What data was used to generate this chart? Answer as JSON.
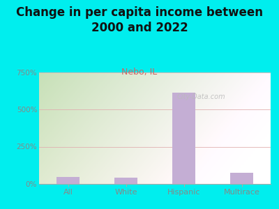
{
  "title": "Change in per capita income between\n2000 and 2022",
  "subtitle": "Nebo, IL",
  "categories": [
    "All",
    "White",
    "Hispanic",
    "Multirace"
  ],
  "values": [
    47,
    43,
    610,
    75
  ],
  "bar_color": "#c4aed4",
  "title_fontsize": 12,
  "subtitle_fontsize": 9,
  "subtitle_color": "#cc6666",
  "title_color": "#111111",
  "background_outer": "#00eeee",
  "yticks": [
    0,
    250,
    500,
    750
  ],
  "ytick_labels": [
    "0%",
    "250%",
    "500%",
    "750%"
  ],
  "ylim": [
    0,
    750
  ],
  "tick_color": "#888888",
  "watermark": "City-Data.com"
}
